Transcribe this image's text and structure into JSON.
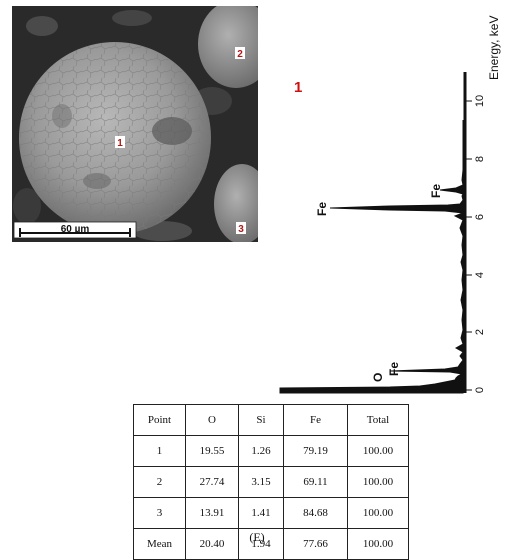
{
  "sem_image": {
    "markers": [
      "1",
      "2",
      "3"
    ],
    "scale_bar_label": "60 µm"
  },
  "spectrum": {
    "spectrum_label": "1",
    "axis_title": "Energy, keV",
    "ticks": [
      "0",
      "2",
      "4",
      "6",
      "8",
      "10"
    ],
    "peak_labels": [
      "O",
      "Fe",
      "Fe",
      "Fe"
    ]
  },
  "table": {
    "headers": [
      "Point",
      "O",
      "Si",
      "Fe",
      "Total"
    ],
    "rows": [
      [
        "1",
        "19.55",
        "1.26",
        "79.19",
        "100.00"
      ],
      [
        "2",
        "27.74",
        "3.15",
        "69.11",
        "100.00"
      ],
      [
        "3",
        "13.91",
        "1.41",
        "84.68",
        "100.00"
      ],
      [
        "Mean",
        "20.40",
        "1.94",
        "77.66",
        "100.00"
      ]
    ]
  },
  "caption": "(E)"
}
